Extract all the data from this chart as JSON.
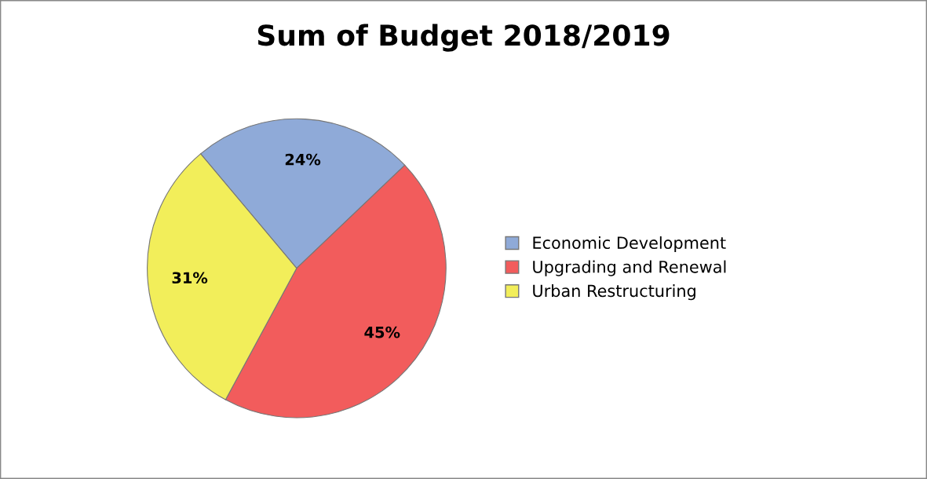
{
  "chart_data": {
    "type": "pie",
    "title": "Sum of Budget 2018/2019",
    "categories": [
      "Economic Development",
      "Upgrading and Renewal",
      "Urban Restructuring"
    ],
    "values": [
      24,
      45,
      31
    ],
    "colors": [
      "#8faad8",
      "#f25c5c",
      "#f2ee5a"
    ],
    "value_labels": [
      "24%",
      "45%",
      "31%"
    ],
    "legend": "right"
  }
}
